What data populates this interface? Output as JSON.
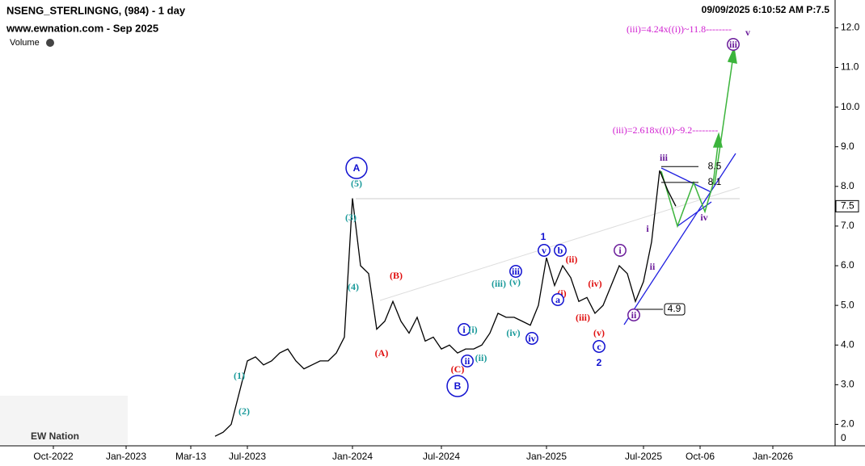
{
  "chart_data": {
    "type": "line",
    "title": "NSENG_STERLINGNG, (984) - 1 day",
    "subtitle": "www.ewnation.com  - Sep 2025",
    "volume_label": "Volume",
    "timestamp": "09/09/2025 6:10:52 AM  P:7.5",
    "logo": "EW Nation",
    "color": "#000000",
    "categories": [
      null,
      null,
      null,
      null,
      null,
      null,
      "Oct-2022",
      null,
      null,
      null,
      null,
      null,
      null,
      null,
      null,
      "Jan-2023",
      null,
      null,
      null,
      null,
      null,
      null,
      null,
      "Mar-13",
      null,
      null,
      null,
      null,
      null,
      null,
      "Jul-2023",
      null,
      null,
      null,
      null,
      null,
      null,
      null,
      null,
      null,
      null,
      null,
      null,
      "Jan-2024",
      null,
      null,
      null,
      null,
      null,
      null,
      null,
      null,
      null,
      null,
      "Jul-2024",
      null,
      null,
      null,
      null,
      null,
      null,
      null,
      null,
      null,
      null,
      null,
      null,
      "Jan-2025",
      null,
      null,
      null,
      null,
      null,
      null,
      null,
      null,
      null,
      null,
      null,
      "Jul-2025",
      null,
      null,
      null,
      null,
      null,
      null,
      "Oct-06",
      null,
      null,
      null,
      null,
      null,
      null,
      null,
      null,
      "Jan-2026",
      null,
      null,
      null,
      null,
      null,
      null,
      null
    ],
    "values": [
      null,
      null,
      null,
      null,
      null,
      null,
      null,
      null,
      null,
      null,
      null,
      null,
      null,
      null,
      null,
      null,
      null,
      null,
      null,
      null,
      null,
      null,
      null,
      null,
      null,
      null,
      1.7,
      1.8,
      2.0,
      2.8,
      3.6,
      3.7,
      3.5,
      3.6,
      3.8,
      3.9,
      3.6,
      3.4,
      3.5,
      3.6,
      3.6,
      3.8,
      4.2,
      7.7,
      6.0,
      5.8,
      4.4,
      4.6,
      5.1,
      4.6,
      4.3,
      4.7,
      4.1,
      4.2,
      3.9,
      4.0,
      3.8,
      3.9,
      3.9,
      4.0,
      4.3,
      4.8,
      4.7,
      4.7,
      4.6,
      4.5,
      5.0,
      6.2,
      5.5,
      6.0,
      5.7,
      5.1,
      5.2,
      4.8,
      5.0,
      5.5,
      6.0,
      5.8,
      5.1,
      5.6,
      6.6,
      8.4,
      7.9,
      7.5,
      null,
      null,
      null,
      null,
      null,
      null,
      null,
      null,
      null,
      null,
      null,
      null,
      null,
      null,
      null,
      null,
      null,
      null,
      null
    ],
    "ylim": [
      1.5,
      12.7
    ],
    "yticks": [
      {
        "value": 2,
        "label": "2.0"
      },
      {
        "value": 3,
        "label": "3.0"
      },
      {
        "value": 4,
        "label": "4.0"
      },
      {
        "value": 5,
        "label": "5.0"
      },
      {
        "value": 6,
        "label": "6.0"
      },
      {
        "value": 7,
        "label": "7.0"
      },
      {
        "value": 8,
        "label": "8.0"
      },
      {
        "value": 9,
        "label": "9.0"
      },
      {
        "value": 10,
        "label": "10.0"
      },
      {
        "value": 11,
        "label": "11.0"
      },
      {
        "value": 12,
        "label": "12.0"
      }
    ],
    "volume_ticks": [
      0
    ],
    "levels": [
      4.9,
      8.5,
      8.1
    ],
    "annotations": [
      "A",
      "(5)",
      "(3)",
      "(4)",
      "(1)",
      "(2)",
      "(B)",
      "(A)",
      "(C)",
      "B",
      "i",
      "ii",
      "(i)",
      "(ii)",
      "(iii)",
      "iii",
      "(v)",
      "(iv)",
      "iv",
      "1",
      "v",
      "b",
      "(ii)",
      "(i)",
      "a",
      "(iv)",
      "(iii)",
      "(v)",
      "c",
      "2",
      "i",
      "i",
      "ii",
      "ii",
      "iii",
      "iv",
      "v",
      "iii",
      "(iii)=4.24x((i))~11.8--------",
      "(iii)=2.618x((i))~9.2--------"
    ]
  }
}
